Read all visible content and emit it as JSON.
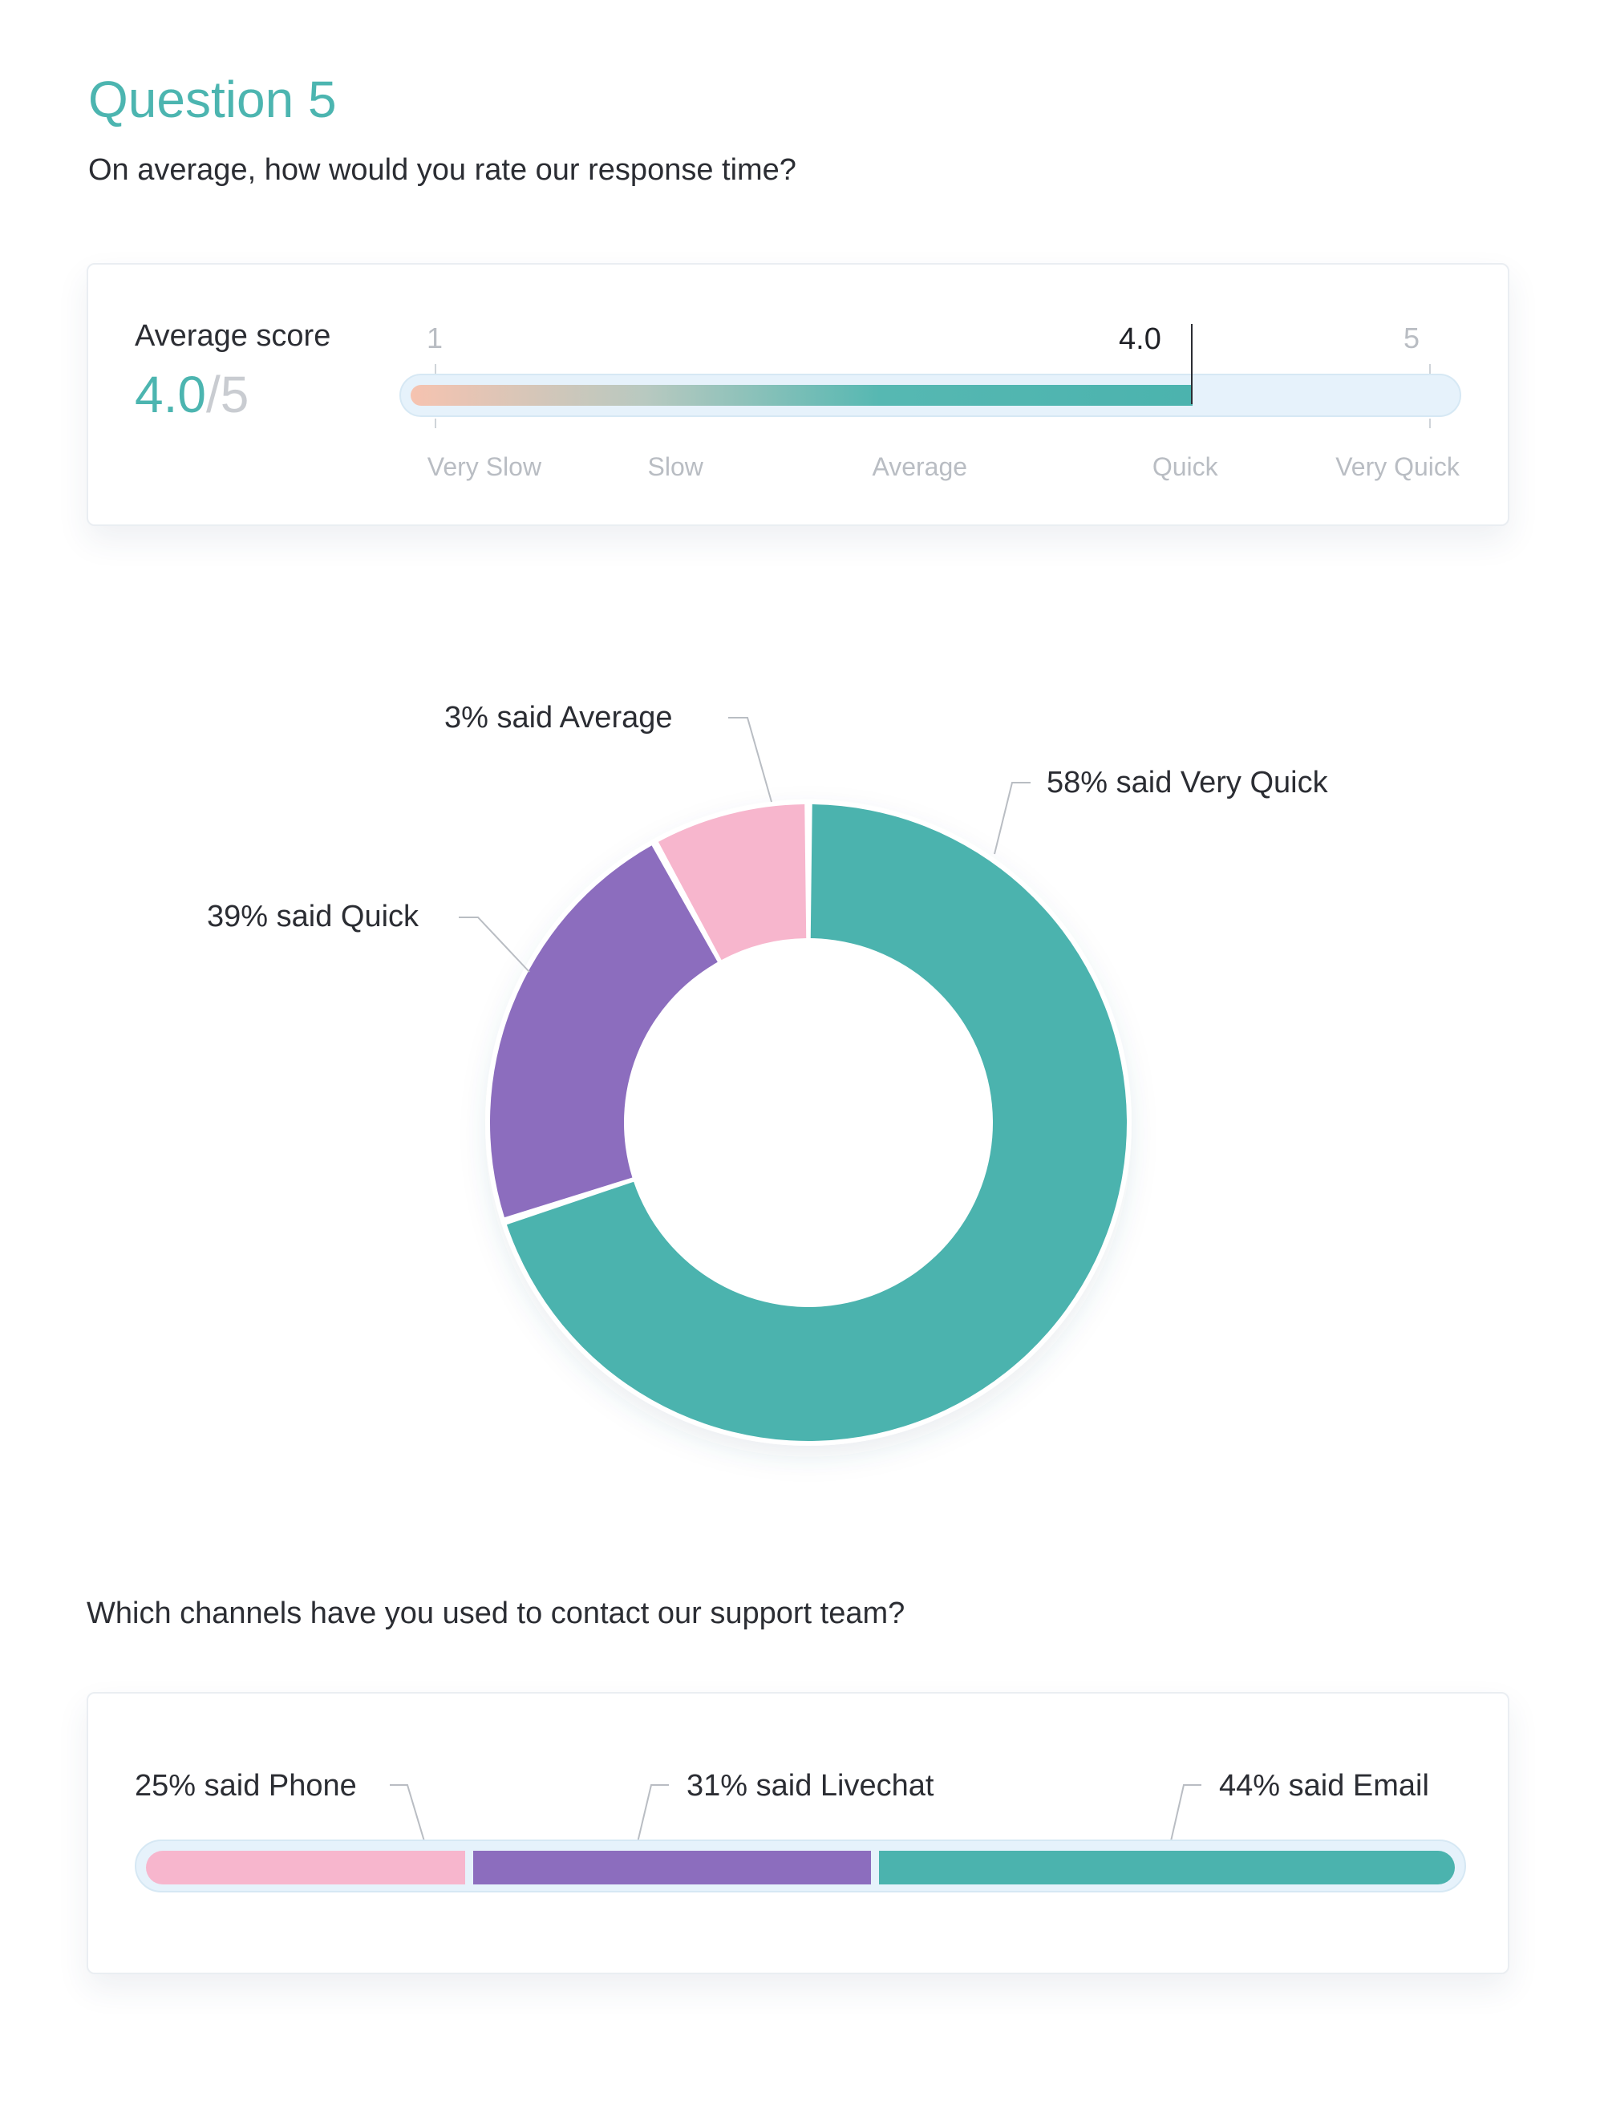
{
  "question": {
    "title": "Question 5",
    "prompt": "On average, how would you rate our response time?"
  },
  "average_score": {
    "label": "Average score",
    "value": "4.0",
    "separator": "/",
    "max": "5",
    "scale_min": "1",
    "scale_max": "5",
    "current_label": "4.0",
    "score": 4.0,
    "scale_labels": [
      "Very Slow",
      "Slow",
      "Average",
      "Quick",
      "Very Quick"
    ],
    "gradient_colors": [
      "#f6c3b0",
      "#4bb3ae"
    ]
  },
  "chart_data": [
    {
      "type": "pie",
      "style": "donut",
      "categories": [
        "Very Quick",
        "Quick",
        "Average"
      ],
      "values": [
        58,
        39,
        3
      ],
      "labels": [
        "58% said Very Quick",
        "39% said Quick",
        "3% said Average"
      ],
      "colors": [
        "#4bb3ae",
        "#8c6dbe",
        "#f7b6cd"
      ]
    },
    {
      "type": "bar",
      "style": "stacked-horizontal",
      "title": "Which channels have you used to contact our support team?",
      "categories": [
        "Phone",
        "Livechat",
        "Email"
      ],
      "values": [
        25,
        31,
        44
      ],
      "labels": [
        "25% said Phone",
        "31% said Livechat",
        "44% said Email"
      ],
      "colors": [
        "#f7b6cd",
        "#8c6dbe",
        "#4bb3ae"
      ]
    }
  ],
  "colors": {
    "accent": "#4cb5b0",
    "track": "#e6f2fb",
    "text": "#2b2d33",
    "muted": "#b9bdc3"
  }
}
